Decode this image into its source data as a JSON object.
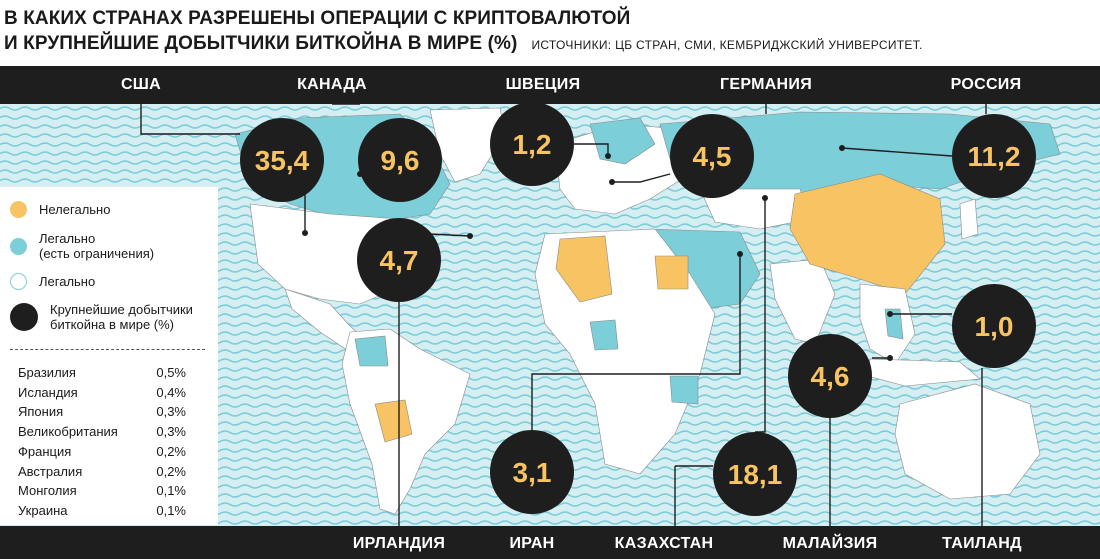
{
  "title": {
    "line1": "В КАКИХ СТРАНАХ РАЗРЕШЕНЫ ОПЕРАЦИИ С КРИПТОВАЛЮТОЙ",
    "line2": "И КРУПНЕЙШИЕ ДОБЫТЧИКИ БИТКОЙНА В МИРЕ (%)",
    "source": "ИСТОЧНИКИ: ЦБ СТРАН, СМИ, КЕМБРИДЖСКИЙ УНИВЕРСИТЕТ."
  },
  "colors": {
    "illegal": "#f8c463",
    "restricted": "#7ccfd8",
    "legal": "#ffffff",
    "miner": "#1e1e1e",
    "ocean": "#d4eef2",
    "ocean_wave": "#79cbd9"
  },
  "top_countries": [
    "США",
    "КАНАДА",
    "ШВЕЦИЯ",
    "ГЕРМАНИЯ",
    "РОССИЯ"
  ],
  "bottom_countries": [
    "ИРЛАНДИЯ",
    "ИРАН",
    "КАЗАХСТАН",
    "МАЛАЙЗИЯ",
    "ТАИЛАНД"
  ],
  "miners": [
    {
      "country": "США",
      "share": "35,4"
    },
    {
      "country": "КАНАДА",
      "share": "9,6"
    },
    {
      "country": "ШВЕЦИЯ",
      "share": "1,2"
    },
    {
      "country": "ГЕРМАНИЯ",
      "share": "4,5"
    },
    {
      "country": "РОССИЯ",
      "share": "11,2"
    },
    {
      "country": "ИРЛАНДИЯ",
      "share": "4,7"
    },
    {
      "country": "ИРАН",
      "share": "3,1"
    },
    {
      "country": "КАЗАХСТАН",
      "share": "18,1"
    },
    {
      "country": "МАЛАЙЗИЯ",
      "share": "4,6"
    },
    {
      "country": "ТАИЛАНД",
      "share": "1,0"
    }
  ],
  "legend": {
    "illegal": "Нелегально",
    "restricted_1": "Легально",
    "restricted_2": "(есть ограничения)",
    "legal": "Легально",
    "miners_1": "Крупнейшие добытчики",
    "miners_2": "биткойна в мире (%)"
  },
  "other_miners": [
    {
      "country": "Бразилия",
      "share": "0,5%"
    },
    {
      "country": "Исландия",
      "share": "0,4%"
    },
    {
      "country": "Япония",
      "share": "0,3%"
    },
    {
      "country": "Великобритания",
      "share": "0,3%"
    },
    {
      "country": "Франция",
      "share": "0,2%"
    },
    {
      "country": "Австралия",
      "share": "0,2%"
    },
    {
      "country": "Монголия",
      "share": "0,1%"
    },
    {
      "country": "Украина",
      "share": "0,1%"
    }
  ]
}
